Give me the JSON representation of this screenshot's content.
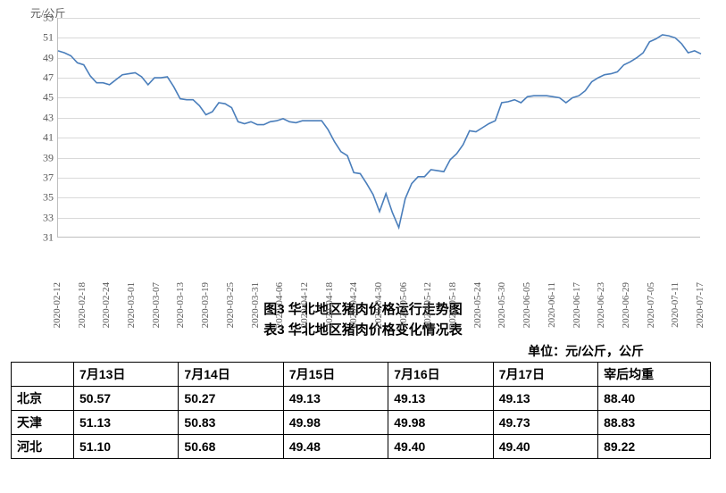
{
  "chart": {
    "type": "line",
    "y_axis_unit_label": "元/公斤",
    "line_color": "#4a7ebb",
    "grid_color": "#d9d9d9",
    "axis_color": "#bfbfbf",
    "text_color": "#595959",
    "background_color": "#ffffff",
    "ylim": [
      31,
      53
    ],
    "ytick_step": 2,
    "yticks": [
      31,
      33,
      35,
      37,
      39,
      41,
      43,
      45,
      47,
      49,
      51,
      53
    ],
    "x_labels": [
      "2020-02-12",
      "2020-02-18",
      "2020-02-24",
      "2020-03-01",
      "2020-03-07",
      "2020-03-13",
      "2020-03-19",
      "2020-03-25",
      "2020-03-31",
      "2020-04-06",
      "2020-04-12",
      "2020-04-18",
      "2020-04-24",
      "2020-04-30",
      "2020-05-06",
      "2020-05-12",
      "2020-05-18",
      "2020-05-24",
      "2020-05-30",
      "2020-06-05",
      "2020-06-11",
      "2020-06-17",
      "2020-06-23",
      "2020-06-29",
      "2020-07-05",
      "2020-07-11",
      "2020-07-17"
    ],
    "series": {
      "values": [
        49.7,
        49.5,
        49.2,
        48.5,
        48.3,
        47.2,
        46.5,
        46.5,
        46.3,
        46.8,
        47.3,
        47.4,
        47.5,
        47.1,
        46.3,
        47.0,
        47.0,
        47.1,
        46.1,
        44.9,
        44.8,
        44.8,
        44.2,
        43.3,
        43.6,
        44.5,
        44.4,
        44.0,
        42.6,
        42.4,
        42.6,
        42.3,
        42.3,
        42.6,
        42.7,
        42.9,
        42.6,
        42.5,
        42.7,
        42.7,
        42.7,
        42.7,
        41.8,
        40.6,
        39.6,
        39.2,
        37.5,
        37.4,
        36.4,
        35.3,
        33.6,
        35.4,
        33.5,
        32.0,
        34.9,
        36.4,
        37.1,
        37.1,
        37.8,
        37.7,
        37.6,
        38.8,
        39.4,
        40.3,
        41.7,
        41.6,
        42.0,
        42.4,
        42.7,
        44.5,
        44.6,
        44.8,
        44.5,
        45.1,
        45.2,
        45.2,
        45.2,
        45.1,
        45.0,
        44.5,
        45.0,
        45.2,
        45.7,
        46.6,
        47.0,
        47.3,
        47.4,
        47.6,
        48.3,
        48.6,
        49.0,
        49.5,
        50.6,
        50.9,
        51.3,
        51.2,
        51.0,
        50.4,
        49.5,
        49.7,
        49.4
      ]
    },
    "label_fontsize": 12,
    "tick_fontsize": 11,
    "line_width": 1.6
  },
  "captions": {
    "fig": "图3 华北地区猪肉价格运行走势图",
    "tbl": "表3 华北地区猪肉价格变化情况表",
    "unit": "单位：元/公斤，公斤"
  },
  "table": {
    "columns": [
      "",
      "7月13日",
      "7月14日",
      "7月15日",
      "7月16日",
      "7月17日",
      "宰后均重"
    ],
    "rows": [
      [
        "北京",
        "50.57",
        "50.27",
        "49.13",
        "49.13",
        "49.13",
        "88.40"
      ],
      [
        "天津",
        "51.13",
        "50.83",
        "49.98",
        "49.98",
        "49.73",
        "88.83"
      ],
      [
        "河北",
        "51.10",
        "50.68",
        "49.48",
        "49.40",
        "49.40",
        "89.22"
      ]
    ],
    "border_color": "#000000",
    "font_size": 14
  }
}
